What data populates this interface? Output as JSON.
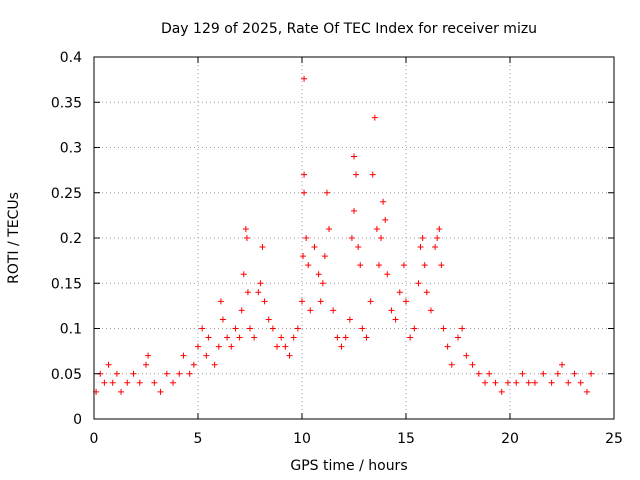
{
  "chart_data": {
    "type": "scatter",
    "title": "Day 129 of 2025, Rate Of TEC Index for receiver mizu",
    "xlabel": "GPS time / hours",
    "ylabel": "ROTI / TECUs",
    "xlim": [
      0,
      25
    ],
    "ylim": [
      0,
      0.4
    ],
    "xticks": [
      0,
      5,
      10,
      15,
      20,
      25
    ],
    "yticks": [
      0,
      0.05,
      0.1,
      0.15,
      0.2,
      0.25,
      0.3,
      0.35,
      0.4
    ],
    "xtick_labels": [
      "0",
      "5",
      "10",
      "15",
      "20",
      "25"
    ],
    "ytick_labels": [
      "0",
      "0.05",
      "0.1",
      "0.15",
      "0.2",
      "0.25",
      "0.3",
      "0.35",
      "0.4"
    ],
    "grid": true,
    "marker": "+",
    "marker_color": "#ff0000",
    "series": [
      {
        "name": "ROTI",
        "points": [
          [
            0.1,
            0.03
          ],
          [
            0.3,
            0.05
          ],
          [
            0.5,
            0.04
          ],
          [
            0.7,
            0.06
          ],
          [
            0.9,
            0.04
          ],
          [
            1.1,
            0.05
          ],
          [
            1.3,
            0.03
          ],
          [
            1.6,
            0.04
          ],
          [
            1.9,
            0.05
          ],
          [
            2.2,
            0.04
          ],
          [
            2.5,
            0.06
          ],
          [
            2.6,
            0.07
          ],
          [
            2.9,
            0.04
          ],
          [
            3.2,
            0.03
          ],
          [
            3.5,
            0.05
          ],
          [
            3.8,
            0.04
          ],
          [
            4.1,
            0.05
          ],
          [
            4.3,
            0.07
          ],
          [
            4.6,
            0.05
          ],
          [
            4.8,
            0.06
          ],
          [
            5.0,
            0.08
          ],
          [
            5.2,
            0.1
          ],
          [
            5.4,
            0.07
          ],
          [
            5.5,
            0.09
          ],
          [
            5.8,
            0.06
          ],
          [
            6.0,
            0.08
          ],
          [
            6.1,
            0.13
          ],
          [
            6.2,
            0.11
          ],
          [
            6.4,
            0.09
          ],
          [
            6.6,
            0.08
          ],
          [
            6.8,
            0.1
          ],
          [
            7.0,
            0.09
          ],
          [
            7.1,
            0.12
          ],
          [
            7.2,
            0.16
          ],
          [
            7.3,
            0.21
          ],
          [
            7.35,
            0.2
          ],
          [
            7.4,
            0.14
          ],
          [
            7.5,
            0.1
          ],
          [
            7.7,
            0.09
          ],
          [
            7.9,
            0.14
          ],
          [
            8.0,
            0.15
          ],
          [
            8.1,
            0.19
          ],
          [
            8.2,
            0.13
          ],
          [
            8.4,
            0.11
          ],
          [
            8.6,
            0.1
          ],
          [
            8.8,
            0.08
          ],
          [
            9.0,
            0.09
          ],
          [
            9.2,
            0.08
          ],
          [
            9.4,
            0.07
          ],
          [
            9.6,
            0.09
          ],
          [
            9.8,
            0.1
          ],
          [
            10.0,
            0.13
          ],
          [
            10.05,
            0.18
          ],
          [
            10.1,
            0.25
          ],
          [
            10.1,
            0.27
          ],
          [
            10.1,
            0.376
          ],
          [
            10.2,
            0.2
          ],
          [
            10.3,
            0.17
          ],
          [
            10.4,
            0.12
          ],
          [
            10.6,
            0.19
          ],
          [
            10.8,
            0.16
          ],
          [
            10.9,
            0.13
          ],
          [
            11.0,
            0.15
          ],
          [
            11.1,
            0.18
          ],
          [
            11.2,
            0.25
          ],
          [
            11.3,
            0.21
          ],
          [
            11.5,
            0.12
          ],
          [
            11.7,
            0.09
          ],
          [
            11.9,
            0.08
          ],
          [
            12.1,
            0.09
          ],
          [
            12.3,
            0.11
          ],
          [
            12.4,
            0.2
          ],
          [
            12.5,
            0.23
          ],
          [
            12.5,
            0.29
          ],
          [
            12.6,
            0.27
          ],
          [
            12.7,
            0.19
          ],
          [
            12.8,
            0.17
          ],
          [
            12.9,
            0.1
          ],
          [
            13.1,
            0.09
          ],
          [
            13.3,
            0.13
          ],
          [
            13.4,
            0.27
          ],
          [
            13.5,
            0.333
          ],
          [
            13.6,
            0.21
          ],
          [
            13.7,
            0.17
          ],
          [
            13.8,
            0.2
          ],
          [
            13.9,
            0.24
          ],
          [
            14.0,
            0.22
          ],
          [
            14.1,
            0.16
          ],
          [
            14.3,
            0.12
          ],
          [
            14.5,
            0.11
          ],
          [
            14.7,
            0.14
          ],
          [
            14.9,
            0.17
          ],
          [
            15.0,
            0.13
          ],
          [
            15.2,
            0.09
          ],
          [
            15.4,
            0.1
          ],
          [
            15.6,
            0.15
          ],
          [
            15.7,
            0.19
          ],
          [
            15.8,
            0.2
          ],
          [
            15.9,
            0.17
          ],
          [
            16.0,
            0.14
          ],
          [
            16.2,
            0.12
          ],
          [
            16.4,
            0.19
          ],
          [
            16.5,
            0.2
          ],
          [
            16.6,
            0.21
          ],
          [
            16.7,
            0.17
          ],
          [
            16.8,
            0.1
          ],
          [
            17.0,
            0.08
          ],
          [
            17.2,
            0.06
          ],
          [
            17.5,
            0.09
          ],
          [
            17.7,
            0.1
          ],
          [
            17.9,
            0.07
          ],
          [
            18.2,
            0.06
          ],
          [
            18.5,
            0.05
          ],
          [
            18.8,
            0.04
          ],
          [
            19.0,
            0.05
          ],
          [
            19.3,
            0.04
          ],
          [
            19.6,
            0.03
          ],
          [
            19.9,
            0.04
          ],
          [
            20.3,
            0.04
          ],
          [
            20.6,
            0.05
          ],
          [
            20.9,
            0.04
          ],
          [
            21.2,
            0.04
          ],
          [
            21.6,
            0.05
          ],
          [
            22.0,
            0.04
          ],
          [
            22.3,
            0.05
          ],
          [
            22.5,
            0.06
          ],
          [
            22.8,
            0.04
          ],
          [
            23.1,
            0.05
          ],
          [
            23.4,
            0.04
          ],
          [
            23.7,
            0.03
          ],
          [
            23.9,
            0.05
          ]
        ]
      }
    ]
  }
}
